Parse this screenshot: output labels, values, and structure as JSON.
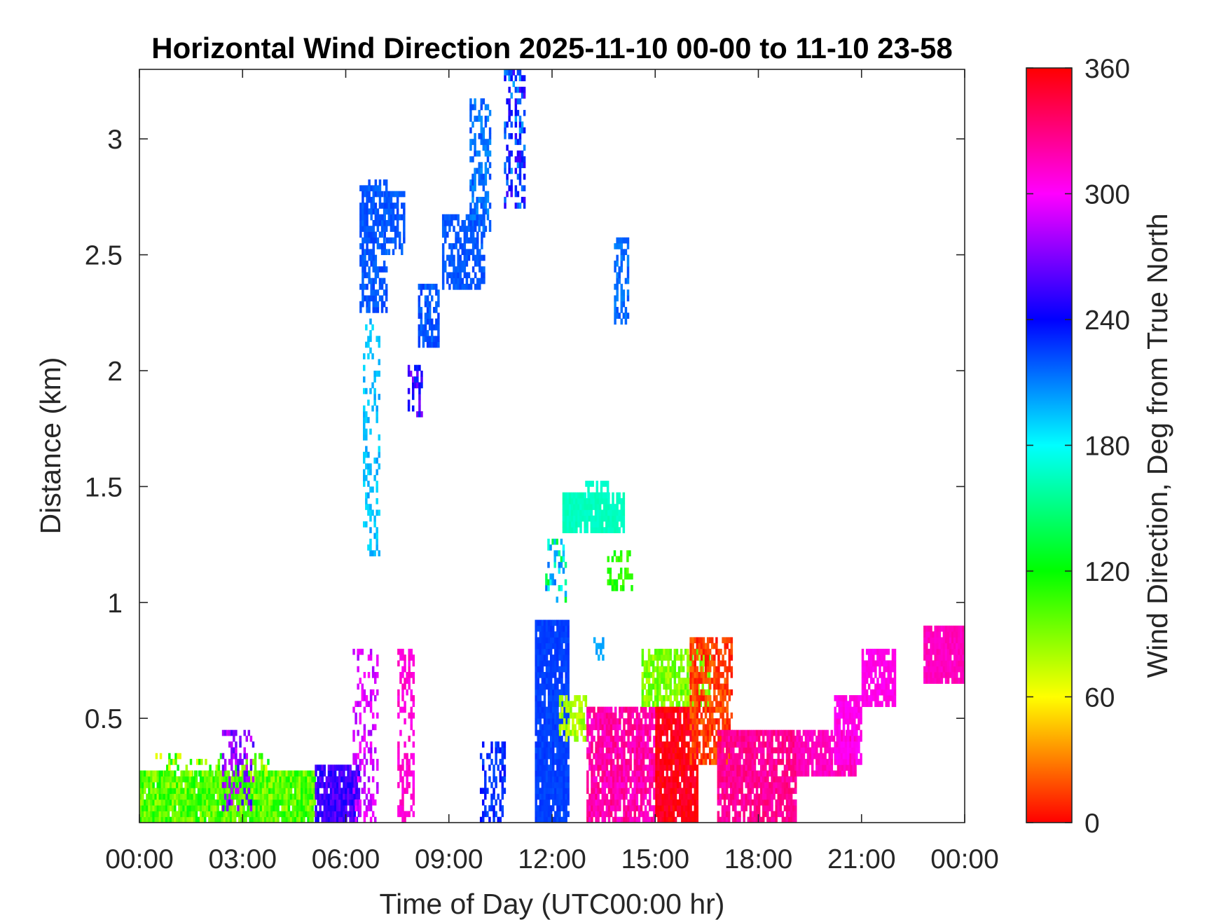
{
  "chart_data": {
    "type": "heatmap",
    "title": "Horizontal Wind Direction 2025-11-10 00-00 to 11-10 23-58",
    "xlabel": "Time of Day (UTC00:00 hr)",
    "ylabel": "Distance (km)",
    "colorbar_label": "Wind Direction, Deg from True North",
    "xlim_hours": [
      0,
      24
    ],
    "ylim_km": [
      0.05,
      3.3
    ],
    "x_ticks": [
      {
        "value": 0,
        "label": "00:00"
      },
      {
        "value": 3,
        "label": "03:00"
      },
      {
        "value": 6,
        "label": "06:00"
      },
      {
        "value": 9,
        "label": "09:00"
      },
      {
        "value": 12,
        "label": "12:00"
      },
      {
        "value": 15,
        "label": "15:00"
      },
      {
        "value": 18,
        "label": "18:00"
      },
      {
        "value": 21,
        "label": "21:00"
      },
      {
        "value": 24,
        "label": "00:00"
      }
    ],
    "y_ticks": [
      {
        "value": 0.5,
        "label": "0.5"
      },
      {
        "value": 1.0,
        "label": "1"
      },
      {
        "value": 1.5,
        "label": "1.5"
      },
      {
        "value": 2.0,
        "label": "2"
      },
      {
        "value": 2.5,
        "label": "2.5"
      },
      {
        "value": 3.0,
        "label": "3"
      }
    ],
    "colorbar_range": [
      0,
      360
    ],
    "colorbar_ticks": [
      {
        "value": 0,
        "label": "0"
      },
      {
        "value": 60,
        "label": "60"
      },
      {
        "value": 120,
        "label": "120"
      },
      {
        "value": 180,
        "label": "180"
      },
      {
        "value": 240,
        "label": "240"
      },
      {
        "value": 300,
        "label": "300"
      },
      {
        "value": 360,
        "label": "360"
      }
    ],
    "colormap": "hsv",
    "grid": false,
    "regions_note": "approximate wind-direction patches; each region is [t_start_hr, t_end_hr, dist_low_km, dist_high_km, direction_deg, spread_deg, density]",
    "regions": [
      [
        0.0,
        5.1,
        0.05,
        0.25,
        100,
        45,
        0.95
      ],
      [
        0.4,
        3.8,
        0.25,
        0.35,
        95,
        70,
        0.25
      ],
      [
        2.4,
        3.3,
        0.1,
        0.45,
        270,
        40,
        0.3
      ],
      [
        5.1,
        6.4,
        0.05,
        0.3,
        255,
        25,
        0.9
      ],
      [
        6.2,
        6.9,
        0.05,
        0.8,
        290,
        25,
        0.35
      ],
      [
        7.5,
        8.0,
        0.05,
        0.8,
        310,
        15,
        0.5
      ],
      [
        6.4,
        7.2,
        2.25,
        2.8,
        220,
        12,
        0.65
      ],
      [
        6.5,
        7.0,
        1.2,
        2.2,
        195,
        18,
        0.3
      ],
      [
        7.1,
        7.7,
        2.5,
        2.75,
        220,
        12,
        0.55
      ],
      [
        8.1,
        8.7,
        2.1,
        2.35,
        220,
        15,
        0.7
      ],
      [
        8.8,
        10.0,
        2.35,
        2.65,
        220,
        10,
        0.7
      ],
      [
        9.6,
        10.2,
        2.6,
        3.15,
        215,
        20,
        0.55
      ],
      [
        10.6,
        11.2,
        2.7,
        3.3,
        230,
        60,
        0.45
      ],
      [
        7.8,
        8.2,
        1.8,
        2.0,
        250,
        40,
        0.55
      ],
      [
        11.5,
        12.5,
        0.05,
        0.92,
        225,
        8,
        0.95
      ],
      [
        12.2,
        13.0,
        0.4,
        0.6,
        80,
        25,
        0.55
      ],
      [
        13.0,
        15.0,
        0.05,
        0.55,
        320,
        25,
        0.85
      ],
      [
        14.6,
        16.6,
        0.55,
        0.8,
        90,
        30,
        0.75
      ],
      [
        15.0,
        16.2,
        0.05,
        0.55,
        355,
        20,
        0.9
      ],
      [
        16.0,
        17.2,
        0.3,
        0.85,
        15,
        25,
        0.7
      ],
      [
        16.8,
        19.1,
        0.05,
        0.45,
        325,
        20,
        0.85
      ],
      [
        19.1,
        20.8,
        0.25,
        0.45,
        315,
        15,
        0.85
      ],
      [
        20.2,
        21.0,
        0.3,
        0.6,
        305,
        12,
        0.85
      ],
      [
        21.0,
        22.0,
        0.55,
        0.8,
        305,
        10,
        0.85
      ],
      [
        22.8,
        24.0,
        0.65,
        0.9,
        315,
        12,
        0.95
      ],
      [
        12.3,
        14.1,
        1.3,
        1.45,
        165,
        8,
        0.95
      ],
      [
        12.9,
        13.6,
        1.45,
        1.52,
        168,
        8,
        0.6
      ],
      [
        13.8,
        14.2,
        2.2,
        2.55,
        215,
        15,
        0.55
      ],
      [
        11.8,
        12.4,
        1.0,
        1.25,
        170,
        90,
        0.35
      ],
      [
        13.6,
        14.3,
        1.05,
        1.2,
        110,
        25,
        0.45
      ],
      [
        13.2,
        13.5,
        0.75,
        0.85,
        200,
        10,
        0.55
      ],
      [
        9.9,
        10.6,
        0.05,
        0.4,
        230,
        20,
        0.4
      ]
    ]
  }
}
